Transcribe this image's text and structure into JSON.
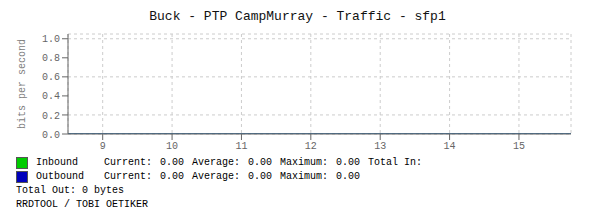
{
  "chart_data": {
    "type": "line",
    "title": "Buck - PTP CampMurray - Traffic - sfp1",
    "ylabel": "bits per second",
    "x": [
      8.5,
      15.75
    ],
    "series": [
      {
        "name": "Inbound",
        "color": "#00cc00",
        "values": [
          0,
          0
        ]
      },
      {
        "name": "Outbound",
        "color": "#0000bb",
        "values": [
          0,
          0
        ]
      }
    ],
    "xlim": [
      8.5,
      15.75
    ],
    "ylim": [
      0.0,
      1.05
    ],
    "xticks": [
      9,
      10,
      11,
      12,
      13,
      14,
      15
    ],
    "yticks": [
      {
        "value": 0,
        "label": "0.0"
      },
      0.2,
      0.4,
      0.6,
      0.8,
      {
        "value": 1,
        "label": "1.0"
      }
    ],
    "grid": true,
    "annotations": [
      [
        "Current:",
        "0.00",
        "Average:",
        "0.00",
        "Maximum:",
        "0.00",
        "Total In:"
      ],
      [
        "Current:",
        "0.00",
        "Average:",
        "0.00",
        "Maximum:",
        "0.00"
      ],
      [
        "Total Out: 0 bytes"
      ],
      [
        "RRDTOOL / TOBI OETIKER"
      ]
    ]
  }
}
